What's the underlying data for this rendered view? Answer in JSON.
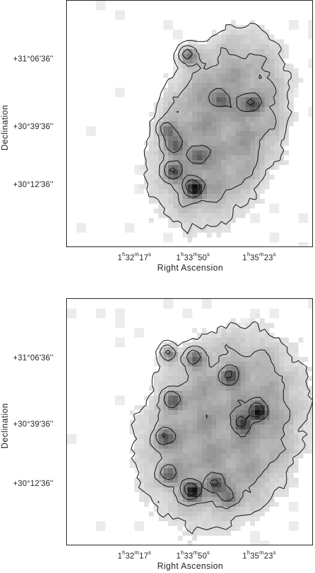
{
  "chart_data": [
    {
      "type": "heatmap",
      "panel": "top",
      "xlabel": "Right Ascension",
      "ylabel": "Declination",
      "x_ticks": [
        {
          "h": "1",
          "m": "32",
          "s": "17"
        },
        {
          "h": "1",
          "m": "33",
          "s": "50"
        },
        {
          "h": "1",
          "m": "35",
          "s": "23"
        }
      ],
      "y_ticks": [
        "+31°06'36''",
        "+30°39'36''",
        "+30°12'36''"
      ],
      "contours": true,
      "colormap": "greyscale",
      "peaks": [
        {
          "ra": "1h33m43s",
          "dec": "+30°13'",
          "level": 1.0
        },
        {
          "ra": "1h33m11s",
          "dec": "+30°20'",
          "level": 0.55
        },
        {
          "ra": "1h33m14s",
          "dec": "+30°31'",
          "level": 0.45
        },
        {
          "ra": "1h33m02s",
          "dec": "+30°38'",
          "level": 0.45
        },
        {
          "ra": "1h34m22s",
          "dec": "+30°51'",
          "level": 0.5
        },
        {
          "ra": "1h35m11s",
          "dec": "+30°49'",
          "level": 0.55
        },
        {
          "ra": "1h33m33s",
          "dec": "+31°10'",
          "level": 0.6
        },
        {
          "ra": "1h33m47s",
          "dec": "+30°27'",
          "level": 0.45
        }
      ]
    },
    {
      "type": "heatmap",
      "panel": "bottom",
      "xlabel": "Right Ascension",
      "ylabel": "Declination",
      "x_ticks": [
        {
          "h": "1",
          "m": "32",
          "s": "17"
        },
        {
          "h": "1",
          "m": "33",
          "s": "50"
        },
        {
          "h": "1",
          "m": "35",
          "s": "23"
        }
      ],
      "y_ticks": [
        "+31°06'36''",
        "+30°39'36''",
        "+30°12'36''"
      ],
      "contours": true,
      "colormap": "greyscale",
      "peaks": [
        {
          "ra": "1h33m40s",
          "dec": "+30°11'",
          "level": 0.95
        },
        {
          "ra": "1h35m18s",
          "dec": "+30°45'",
          "level": 0.95
        },
        {
          "ra": "1h34m54s",
          "dec": "+30°40'",
          "level": 0.6
        },
        {
          "ra": "1h32m58s",
          "dec": "+30°34'",
          "level": 0.55
        },
        {
          "ra": "1h33m11s",
          "dec": "+30°50'",
          "level": 0.5
        },
        {
          "ra": "1h33m05s",
          "dec": "+31°10'",
          "level": 0.55
        },
        {
          "ra": "1h33m43s",
          "dec": "+31°08'",
          "level": 0.55
        },
        {
          "ra": "1h34m36s",
          "dec": "+31°00'",
          "level": 0.5
        },
        {
          "ra": "1h34m15s",
          "dec": "+30°14'",
          "level": 0.5
        },
        {
          "ra": "1h33m04s",
          "dec": "+30°18'",
          "level": 0.45
        },
        {
          "ra": "1h34m35s",
          "dec": "+30°08'",
          "level": 0.45
        }
      ]
    }
  ]
}
